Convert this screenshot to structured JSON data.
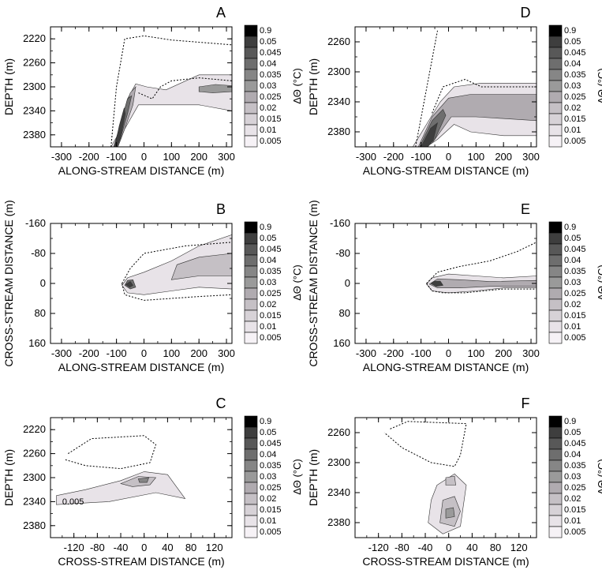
{
  "colorbar": {
    "levels": [
      "0.9",
      "0.05",
      "0.045",
      "0.04",
      "0.035",
      "0.03",
      "0.025",
      "0.02",
      "0.015",
      "0.01",
      "0.005"
    ],
    "colors": [
      "#000000",
      "#3e3e3e",
      "#585858",
      "#6e6e6e",
      "#868686",
      "#9a9a9a",
      "#b0abb0",
      "#c5c0c5",
      "#d7d2d7",
      "#e8e3e8",
      "#f6f2f6"
    ],
    "label": "ΔΘ (°C)"
  },
  "chart_data": [
    {
      "panel": "A",
      "type": "heatmap",
      "xlabel": "ALONG-STREAM DISTANCE (m)",
      "ylabel": "DEPTH (m)",
      "xlim": [
        -340,
        320
      ],
      "ylim": [
        2400,
        2200
      ],
      "xticks": [
        "-300",
        "-200",
        "-100",
        "0",
        "100",
        "200",
        "300"
      ],
      "yticks": [
        "2220",
        "2260",
        "2300",
        "2340",
        "2380"
      ],
      "annotations": [],
      "blobs": [
        {
          "level": 1,
          "points": [
            [
              -120,
              2400
            ],
            [
              -95,
              2380
            ],
            [
              -60,
              2320
            ],
            [
              -30,
              2295
            ],
            [
              10,
              2300
            ],
            [
              80,
              2305
            ],
            [
              200,
              2280
            ],
            [
              320,
              2280
            ],
            [
              320,
              2340
            ],
            [
              200,
              2330
            ],
            [
              60,
              2330
            ],
            [
              -20,
              2330
            ],
            [
              -70,
              2370
            ],
            [
              -95,
              2400
            ]
          ]
        },
        {
          "level": 4,
          "points": [
            [
              -110,
              2400
            ],
            [
              -85,
              2360
            ],
            [
              -50,
              2310
            ],
            [
              -30,
              2300
            ],
            [
              -40,
              2330
            ],
            [
              -70,
              2370
            ],
            [
              -95,
              2400
            ]
          ]
        },
        {
          "level": 7,
          "points": [
            [
              -108,
              2400
            ],
            [
              -85,
              2360
            ],
            [
              -60,
              2320
            ],
            [
              -45,
              2315
            ],
            [
              -60,
              2345
            ],
            [
              -85,
              2385
            ],
            [
              -98,
              2400
            ]
          ]
        },
        {
          "level": 9,
          "points": [
            [
              -106,
              2400
            ],
            [
              -90,
              2365
            ],
            [
              -72,
              2335
            ],
            [
              -68,
              2345
            ],
            [
              -85,
              2385
            ],
            [
              -98,
              2400
            ]
          ]
        },
        {
          "level": 5,
          "points": [
            [
              200,
              2300
            ],
            [
              260,
              2296
            ],
            [
              320,
              2298
            ],
            [
              320,
              2308
            ],
            [
              250,
              2310
            ],
            [
              200,
              2308
            ]
          ]
        }
      ],
      "dotted": [
        [
          [
            -120,
            2400
          ],
          [
            -100,
            2300
          ],
          [
            -70,
            2220
          ],
          [
            0,
            2215
          ],
          [
            100,
            2222
          ],
          [
            320,
            2230
          ]
        ],
        [
          [
            -20,
            2310
          ],
          [
            30,
            2320
          ],
          [
            60,
            2300
          ],
          [
            100,
            2290
          ],
          [
            200,
            2285
          ],
          [
            320,
            2290
          ]
        ]
      ]
    },
    {
      "panel": "B",
      "type": "heatmap",
      "xlabel": "ALONG-STREAM DISTANCE (m)",
      "ylabel": "CROSS-STREAM DISTANCE (m)",
      "xlim": [
        -340,
        320
      ],
      "ylim": [
        160,
        -160
      ],
      "xticks": [
        "-300",
        "-200",
        "-100",
        "0",
        "100",
        "200",
        "300"
      ],
      "yticks": [
        "160",
        "80",
        "0",
        "-80",
        "-160"
      ],
      "annotations": [],
      "blobs": [
        {
          "level": 1,
          "points": [
            [
              -80,
              5
            ],
            [
              -60,
              25
            ],
            [
              0,
              30
            ],
            [
              100,
              20
            ],
            [
              200,
              10
            ],
            [
              320,
              15
            ],
            [
              320,
              -130
            ],
            [
              200,
              -100
            ],
            [
              100,
              -60
            ],
            [
              0,
              -30
            ],
            [
              -60,
              -15
            ]
          ]
        },
        {
          "level": 3,
          "points": [
            [
              100,
              -10
            ],
            [
              200,
              -20
            ],
            [
              320,
              -20
            ],
            [
              320,
              -80
            ],
            [
              200,
              -70
            ],
            [
              120,
              -50
            ]
          ]
        },
        {
          "level": 7,
          "points": [
            [
              -70,
              5
            ],
            [
              -50,
              15
            ],
            [
              -30,
              10
            ],
            [
              -40,
              -10
            ],
            [
              -60,
              -8
            ]
          ]
        },
        {
          "level": 9,
          "points": [
            [
              -66,
              3
            ],
            [
              -52,
              10
            ],
            [
              -40,
              5
            ],
            [
              -50,
              -5
            ]
          ]
        }
      ],
      "dotted": [
        [
          [
            -80,
            0
          ],
          [
            -70,
            30
          ],
          [
            0,
            45
          ],
          [
            100,
            40
          ],
          [
            200,
            35
          ],
          [
            320,
            30
          ]
        ],
        [
          [
            -80,
            0
          ],
          [
            -50,
            -40
          ],
          [
            0,
            -80
          ],
          [
            150,
            -100
          ],
          [
            320,
            -110
          ]
        ]
      ]
    },
    {
      "panel": "C",
      "type": "heatmap",
      "xlabel": "CROSS-STREAM DISTANCE (m)",
      "ylabel": "DEPTH (m)",
      "xlim": [
        -160,
        150
      ],
      "ylim": [
        2400,
        2200
      ],
      "xticks": [
        "-120",
        "-80",
        "-40",
        "0",
        "40",
        "80",
        "120"
      ],
      "yticks": [
        "2220",
        "2260",
        "2300",
        "2340",
        "2380"
      ],
      "annotations": [
        {
          "text": "0.005",
          "x": -140,
          "y": 2345
        }
      ],
      "blobs": [
        {
          "level": 1,
          "points": [
            [
              -150,
              2330
            ],
            [
              -100,
              2320
            ],
            [
              -40,
              2305
            ],
            [
              0,
              2290
            ],
            [
              40,
              2295
            ],
            [
              70,
              2335
            ],
            [
              20,
              2325
            ],
            [
              -60,
              2340
            ],
            [
              -150,
              2345
            ]
          ]
        },
        {
          "level": 3,
          "points": [
            [
              -40,
              2310
            ],
            [
              -10,
              2298
            ],
            [
              20,
              2300
            ],
            [
              10,
              2312
            ],
            [
              -20,
              2315
            ]
          ]
        },
        {
          "level": 6,
          "points": [
            [
              -10,
              2302
            ],
            [
              8,
              2300
            ],
            [
              5,
              2308
            ],
            [
              -8,
              2308
            ]
          ]
        }
      ],
      "dotted": [
        [
          [
            -130,
            2260
          ],
          [
            -90,
            2235
          ],
          [
            0,
            2230
          ],
          [
            20,
            2245
          ],
          [
            10,
            2275
          ],
          [
            -40,
            2285
          ],
          [
            -100,
            2280
          ],
          [
            -135,
            2270
          ]
        ]
      ]
    },
    {
      "panel": "D",
      "type": "heatmap",
      "xlabel": "ALONG-STREAM DISTANCE (m)",
      "ylabel": "DEPTH (m)",
      "xlim": [
        -340,
        320
      ],
      "ylim": [
        2400,
        2240
      ],
      "xticks": [
        "-300",
        "-200",
        "-100",
        "0",
        "100",
        "200",
        "300"
      ],
      "yticks": [
        "2260",
        "2300",
        "2340",
        "2380"
      ],
      "annotations": [],
      "blobs": [
        {
          "level": 1,
          "points": [
            [
              -130,
              2400
            ],
            [
              -80,
              2370
            ],
            [
              -30,
              2340
            ],
            [
              20,
              2320
            ],
            [
              120,
              2315
            ],
            [
              320,
              2315
            ],
            [
              320,
              2385
            ],
            [
              200,
              2385
            ],
            [
              80,
              2380
            ],
            [
              20,
              2370
            ],
            [
              -40,
              2390
            ],
            [
              -80,
              2400
            ]
          ]
        },
        {
          "level": 4,
          "points": [
            [
              -110,
              2400
            ],
            [
              -60,
              2360
            ],
            [
              0,
              2335
            ],
            [
              80,
              2330
            ],
            [
              320,
              2330
            ],
            [
              320,
              2365
            ],
            [
              100,
              2360
            ],
            [
              10,
              2360
            ],
            [
              -60,
              2395
            ]
          ]
        },
        {
          "level": 7,
          "points": [
            [
              -105,
              2400
            ],
            [
              -60,
              2365
            ],
            [
              -20,
              2350
            ],
            [
              -10,
              2358
            ],
            [
              -50,
              2390
            ],
            [
              -80,
              2400
            ]
          ]
        },
        {
          "level": 9,
          "points": [
            [
              -100,
              2400
            ],
            [
              -65,
              2375
            ],
            [
              -40,
              2368
            ],
            [
              -55,
              2390
            ],
            [
              -75,
              2400
            ]
          ]
        }
      ],
      "dotted": [
        [
          [
            -120,
            2400
          ],
          [
            -40,
            2245
          ]
        ],
        [
          [
            -60,
            2355
          ],
          [
            -20,
            2320
          ],
          [
            60,
            2310
          ],
          [
            120,
            2320
          ],
          [
            320,
            2320
          ]
        ]
      ]
    },
    {
      "panel": "E",
      "type": "heatmap",
      "xlabel": "ALONG-STREAM DISTANCE (m)",
      "ylabel": "CROSS-STREAM DISTANCE (m)",
      "xlim": [
        -340,
        320
      ],
      "ylim": [
        160,
        -160
      ],
      "xticks": [
        "-300",
        "-200",
        "-100",
        "0",
        "100",
        "200",
        "300"
      ],
      "yticks": [
        "160",
        "80",
        "0",
        "-80",
        "-160"
      ],
      "annotations": [],
      "blobs": [
        {
          "level": 1,
          "points": [
            [
              -80,
              2
            ],
            [
              -60,
              20
            ],
            [
              0,
              25
            ],
            [
              100,
              20
            ],
            [
              200,
              12
            ],
            [
              320,
              12
            ],
            [
              320,
              -20
            ],
            [
              200,
              -15
            ],
            [
              100,
              -20
            ],
            [
              0,
              -25
            ],
            [
              -60,
              -15
            ]
          ]
        },
        {
          "level": 4,
          "points": [
            [
              -70,
              2
            ],
            [
              -40,
              12
            ],
            [
              40,
              12
            ],
            [
              150,
              8
            ],
            [
              320,
              8
            ],
            [
              320,
              -8
            ],
            [
              150,
              -5
            ],
            [
              40,
              -10
            ],
            [
              -40,
              -12
            ]
          ]
        },
        {
          "level": 9,
          "points": [
            [
              -65,
              0
            ],
            [
              -45,
              8
            ],
            [
              -20,
              5
            ],
            [
              -30,
              -6
            ],
            [
              -50,
              -6
            ]
          ]
        }
      ],
      "dotted": [
        [
          [
            -80,
            0
          ],
          [
            -60,
            20
          ],
          [
            -20,
            25
          ],
          [
            60,
            25
          ],
          [
            100,
            22
          ],
          [
            200,
            15
          ],
          [
            320,
            15
          ]
        ],
        [
          [
            -80,
            0
          ],
          [
            -40,
            -30
          ],
          [
            40,
            -45
          ],
          [
            150,
            -60
          ],
          [
            250,
            -85
          ],
          [
            320,
            -110
          ]
        ]
      ]
    },
    {
      "panel": "F",
      "type": "heatmap",
      "xlabel": "CROSS-STREAM DISTANCE (m)",
      "ylabel": "DEPTH (m)",
      "xlim": [
        -160,
        150
      ],
      "ylim": [
        2400,
        2240
      ],
      "xticks": [
        "-120",
        "-80",
        "-40",
        "0",
        "40",
        "80",
        "120"
      ],
      "yticks": [
        "2260",
        "2300",
        "2340",
        "2380"
      ],
      "annotations": [],
      "blobs": [
        {
          "level": 1,
          "points": [
            [
              -20,
              2330
            ],
            [
              10,
              2315
            ],
            [
              30,
              2330
            ],
            [
              20,
              2385
            ],
            [
              -10,
              2395
            ],
            [
              -35,
              2380
            ],
            [
              -30,
              2350
            ]
          ]
        },
        {
          "level": 3,
          "points": [
            [
              -10,
              2350
            ],
            [
              10,
              2345
            ],
            [
              20,
              2365
            ],
            [
              10,
              2385
            ],
            [
              -15,
              2380
            ]
          ]
        },
        {
          "level": 5,
          "points": [
            [
              -5,
              2362
            ],
            [
              8,
              2360
            ],
            [
              10,
              2372
            ],
            [
              -5,
              2374
            ]
          ]
        },
        {
          "level": 3,
          "points": [
            [
              -5,
              2320
            ],
            [
              10,
              2318
            ],
            [
              12,
              2330
            ],
            [
              -5,
              2330
            ]
          ]
        }
      ],
      "dotted": [
        [
          [
            -100,
            2255
          ],
          [
            -70,
            2245
          ],
          [
            30,
            2248
          ],
          [
            20,
            2290
          ],
          [
            10,
            2305
          ],
          [
            -30,
            2300
          ],
          [
            -80,
            2280
          ],
          [
            -110,
            2260
          ]
        ]
      ]
    }
  ]
}
